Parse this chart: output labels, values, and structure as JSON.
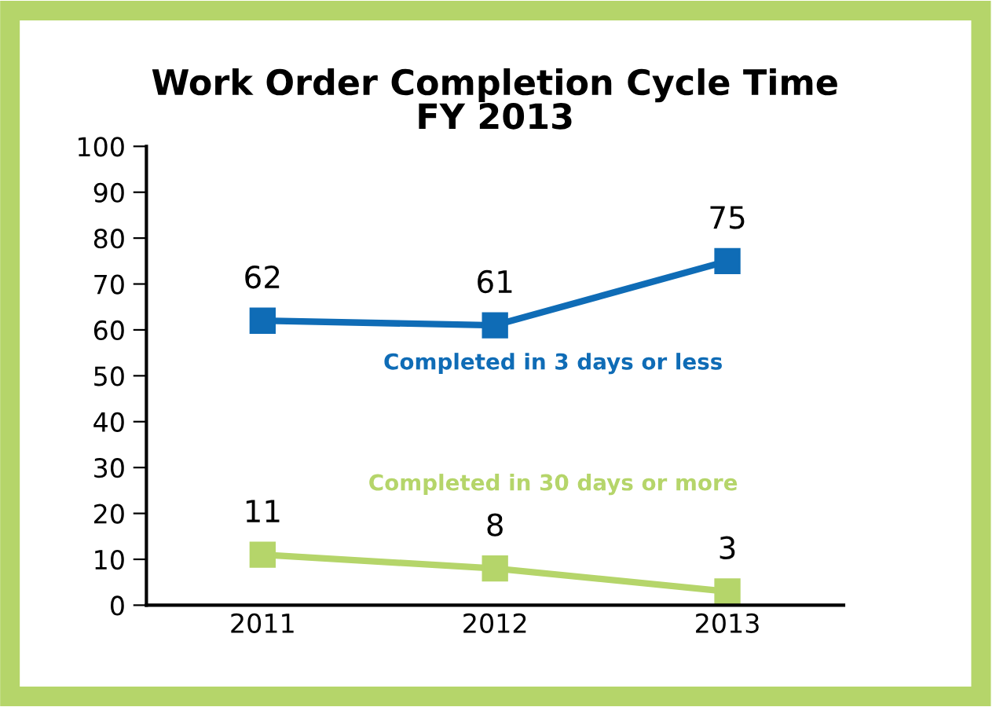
{
  "chart_data": {
    "type": "line",
    "title": "Work Order Completion Cycle Time\nFY 2013",
    "categories": [
      "2011",
      "2012",
      "2013"
    ],
    "series": [
      {
        "name": "Completed in 3 days or less",
        "color": "#0f6cb6",
        "values": [
          62,
          61,
          75
        ]
      },
      {
        "name": "Completed in 30 days or more",
        "color": "#b5d56a",
        "values": [
          11,
          8,
          3
        ]
      }
    ],
    "ylim": [
      0,
      100
    ],
    "yticks": [
      0,
      10,
      20,
      30,
      40,
      50,
      60,
      70,
      80,
      90,
      100
    ],
    "grid": false,
    "legend": false,
    "marker": "square",
    "line_style": "solid",
    "data_labels": true
  }
}
